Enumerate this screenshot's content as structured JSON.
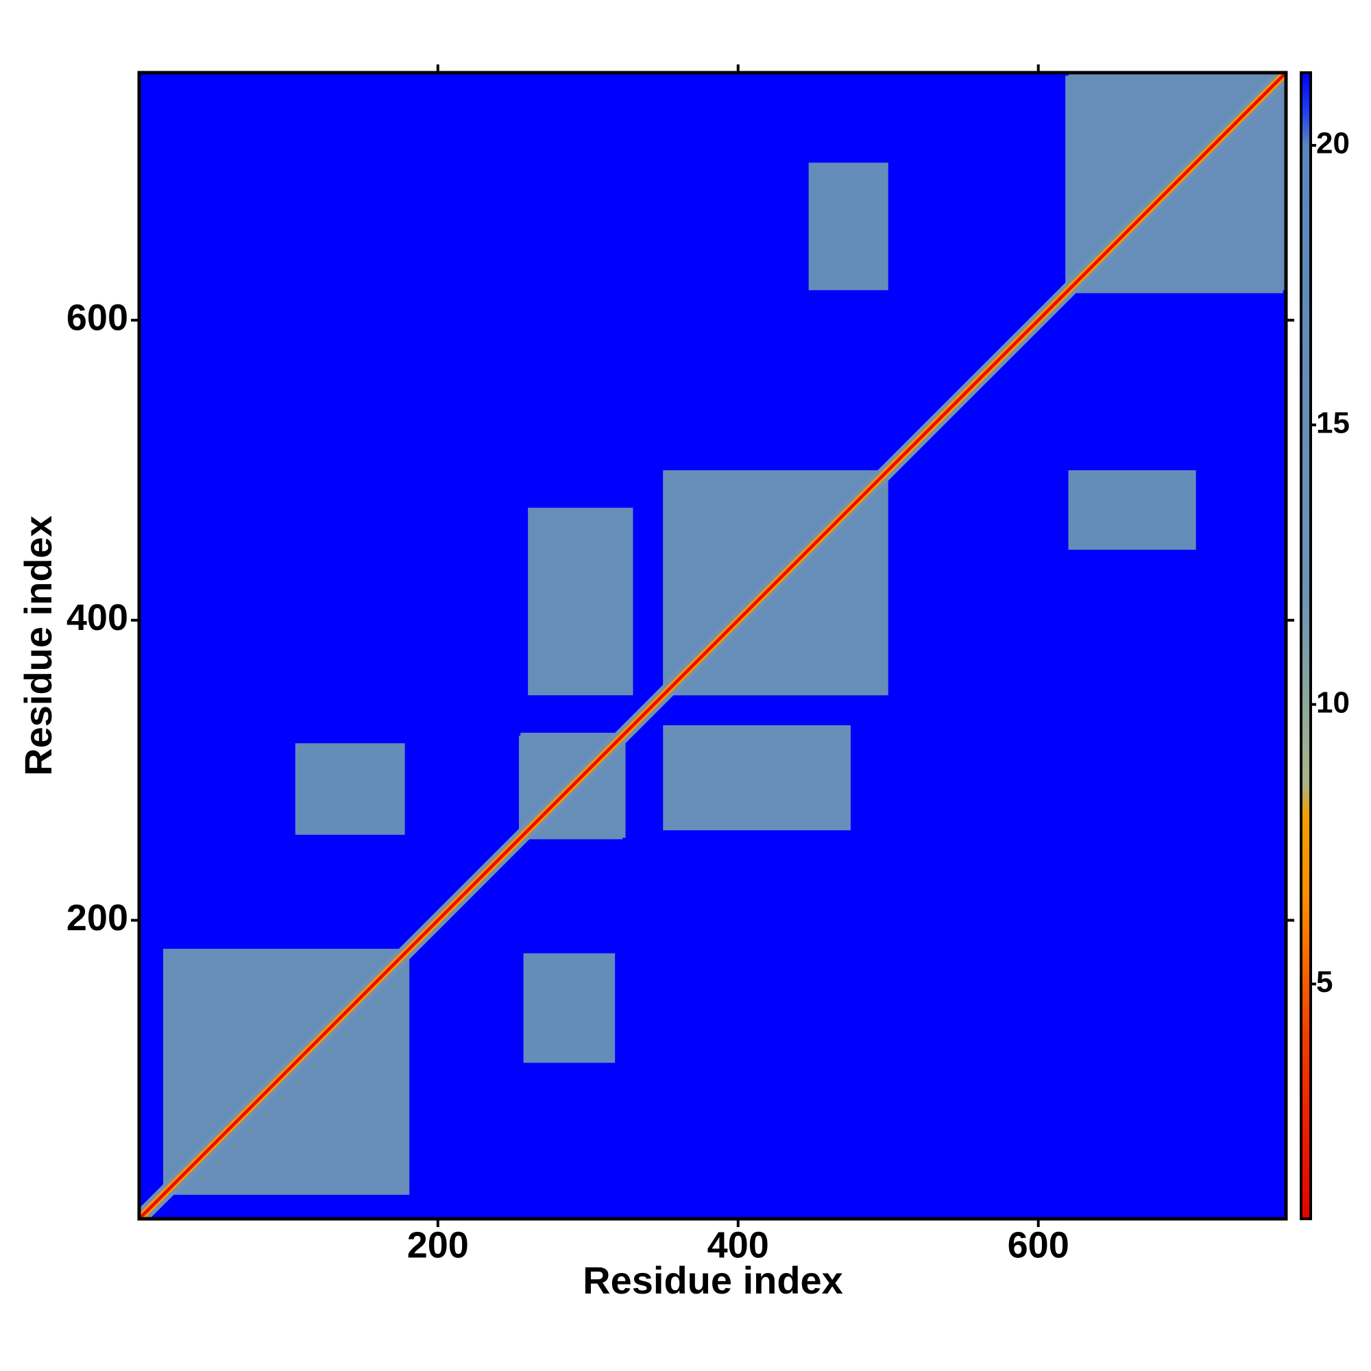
{
  "chart_data": {
    "type": "heatmap",
    "x_label": "Residue index",
    "y_label": "Residue index",
    "xlim": [
      1,
      765
    ],
    "ylim": [
      1,
      765
    ],
    "xticks": [
      200,
      400,
      600
    ],
    "yticks": [
      200,
      400,
      600
    ],
    "symmetric": true,
    "cells": {
      "x0": [
        1,
        17,
        254,
        350,
        618,
        105,
        260,
        447
      ],
      "x1": [
        765,
        178,
        325,
        500,
        765,
        178,
        330,
        500
      ],
      "y0": [
        1,
        17,
        255,
        350,
        620,
        257,
        350,
        620
      ],
      "y1": [
        765,
        181,
        323,
        498,
        763,
        318,
        475,
        705
      ],
      "values": [
        21.3,
        15,
        15,
        15,
        15,
        16,
        15,
        16
      ]
    },
    "diagonal_band": [
      {
        "width": 14,
        "value": 12
      },
      {
        "width": 7,
        "value": 7
      },
      {
        "width": 3,
        "value": 1.5
      }
    ],
    "colorbar_lim": [
      0.8,
      21.3
    ],
    "colorbar_ticks": [
      5,
      10,
      15,
      20
    ],
    "colorscale": [
      {
        "value": 0.8,
        "color": "#e60000"
      },
      {
        "value": 4,
        "color": "#f03c00"
      },
      {
        "value": 6.5,
        "color": "#ff8c00"
      },
      {
        "value": 8,
        "color": "#f0a000"
      },
      {
        "value": 8.6,
        "color": "#a8b48c"
      },
      {
        "value": 10,
        "color": "#8ea89a"
      },
      {
        "value": 12,
        "color": "#6d93b5"
      },
      {
        "value": 20,
        "color": "#5a86bc"
      },
      {
        "value": 20.6,
        "color": "#2040f0"
      },
      {
        "value": 21.3,
        "color": "#0000ff"
      }
    ]
  }
}
